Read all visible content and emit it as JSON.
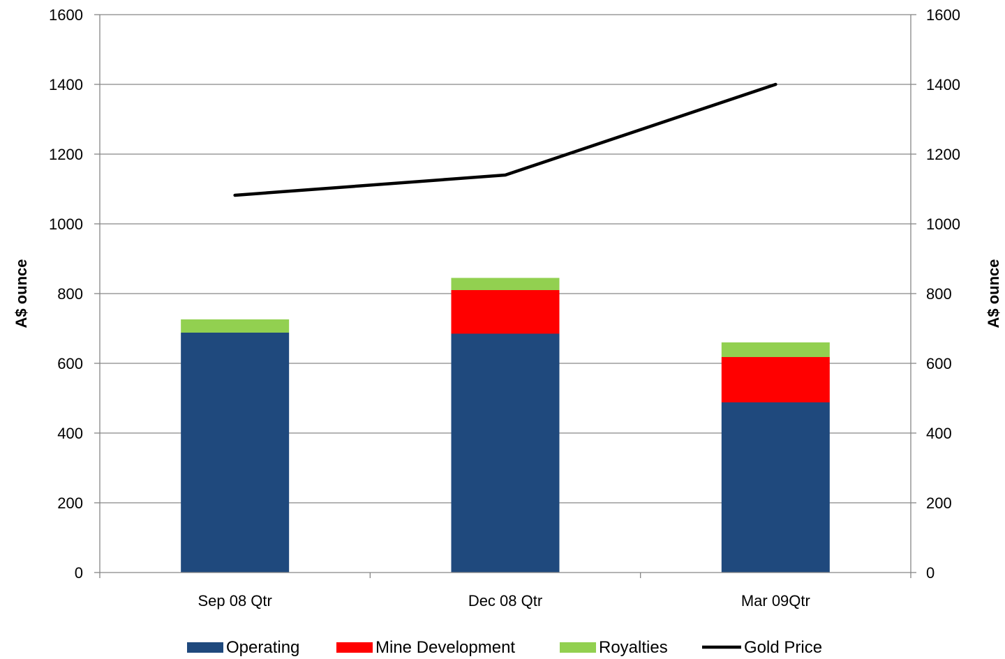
{
  "chart_data": {
    "type": "bar",
    "stacked": true,
    "categories": [
      "Sep 08 Qtr",
      "Dec 08 Qtr",
      "Mar 09Qtr"
    ],
    "series": [
      {
        "name": "Operating",
        "type": "bar",
        "values": [
          688,
          685,
          488
        ],
        "color": "#1F497D"
      },
      {
        "name": "Mine Development",
        "type": "bar",
        "values": [
          0,
          125,
          130
        ],
        "color": "#FF0000"
      },
      {
        "name": "Royalties",
        "type": "bar",
        "values": [
          38,
          35,
          42
        ],
        "color": "#92D050"
      },
      {
        "name": "Gold Price",
        "type": "line",
        "values": [
          1082,
          1140,
          1400
        ],
        "color": "#000000"
      }
    ],
    "ylabel": "A$ ounce",
    "y2label": "A$ ounce",
    "ylim": [
      0,
      1600
    ],
    "y2lim": [
      0,
      1600
    ],
    "yticks": [
      "0",
      "200",
      "400",
      "600",
      "800",
      "1000",
      "1200",
      "1400",
      "1600"
    ],
    "grid": true,
    "legend": "bottom"
  }
}
